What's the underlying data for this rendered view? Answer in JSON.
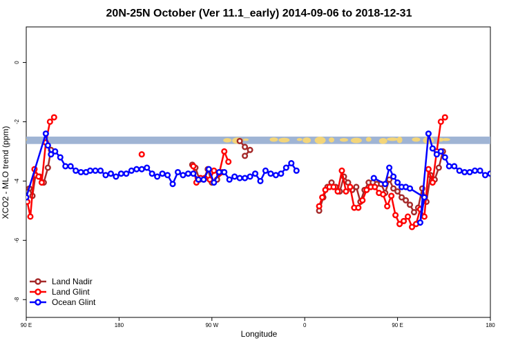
{
  "chart_data": {
    "type": "line",
    "title": "20N-25N October (Ver 11.1_early)   2014-09-06 to 2018-12-31",
    "xlabel": "Longitude",
    "ylabel": "XCO2 - MLO trend (ppm)",
    "xticks": [
      {
        "lon": 90,
        "label": "90 E"
      },
      {
        "lon": 180,
        "label": "180"
      },
      {
        "lon": 270,
        "label": "90 W"
      },
      {
        "lon": 360,
        "label": "0"
      },
      {
        "lon": 450,
        "label": "90 E"
      },
      {
        "lon": 540,
        "label": "180"
      }
    ],
    "xlim": [
      90,
      540
    ],
    "yticks": [
      0,
      -2,
      -4,
      -6,
      -8
    ],
    "ylim": [
      -8.6,
      1.2
    ],
    "grid": false,
    "legend_position": "bottom-left",
    "map_strip": {
      "y_range": [
        -2.75,
        -2.5
      ],
      "ocean_color": "#9fb4d4",
      "land_color": "#f3d57a"
    },
    "series": [
      {
        "name": "Land Nadir",
        "color": "#a52a2a",
        "segments": [
          [
            [
              93,
              -4.25
            ],
            [
              96,
              -4.5
            ],
            [
              99,
              -3.8
            ],
            [
              103,
              -3.85
            ],
            [
              107,
              -4.05
            ],
            [
              111,
              -3.55
            ],
            [
              114,
              -2.95
            ]
          ],
          [
            [
              251,
              -3.45
            ],
            [
              254,
              -3.55
            ],
            [
              258,
              -3.95
            ],
            [
              262,
              -3.95
            ],
            [
              266,
              -3.6
            ],
            [
              270,
              -4.05
            ],
            [
              275,
              -3.95
            ],
            [
              280,
              -3.7
            ]
          ],
          [
            [
              297,
              -2.65
            ],
            [
              302,
              -2.85
            ],
            [
              307,
              -2.95
            ],
            [
              302,
              -3.15
            ]
          ],
          [
            [
              374,
              -5.0
            ],
            [
              378,
              -4.55
            ],
            [
              382,
              -4.2
            ],
            [
              386,
              -4.05
            ],
            [
              390,
              -4.2
            ],
            [
              394,
              -4.35
            ],
            [
              398,
              -3.85
            ],
            [
              402,
              -4.05
            ],
            [
              406,
              -4.3
            ],
            [
              410,
              -4.2
            ],
            [
              414,
              -4.7
            ],
            [
              418,
              -4.3
            ],
            [
              422,
              -4.05
            ],
            [
              426,
              -4.05
            ],
            [
              430,
              -4.1
            ],
            [
              434,
              -4.1
            ],
            [
              438,
              -4.4
            ],
            [
              442,
              -3.95
            ],
            [
              446,
              -4.25
            ],
            [
              450,
              -4.35
            ],
            [
              454,
              -4.55
            ],
            [
              458,
              -4.65
            ],
            [
              462,
              -4.8
            ],
            [
              466,
              -5.05
            ],
            [
              470,
              -4.9
            ],
            [
              474,
              -4.25
            ],
            [
              478,
              -4.7
            ],
            [
              482,
              -3.8
            ],
            [
              486,
              -3.95
            ],
            [
              490,
              -3.55
            ],
            [
              494,
              -3.0
            ]
          ]
        ]
      },
      {
        "name": "Land Glint",
        "color": "#ff0000",
        "segments": [
          [
            [
              91,
              -4.7
            ],
            [
              94,
              -5.2
            ],
            [
              98,
              -3.6
            ],
            [
              102,
              -3.85
            ],
            [
              105,
              -4.05
            ],
            [
              109,
              -2.7
            ],
            [
              113,
              -2.0
            ],
            [
              117,
              -1.85
            ]
          ],
          [
            [
              202,
              -3.1
            ]
          ],
          [
            [
              252,
              -3.5
            ],
            [
              255,
              -4.05
            ],
            [
              259,
              -3.9
            ],
            [
              263,
              -3.9
            ],
            [
              268,
              -3.95
            ],
            [
              272,
              -3.65
            ],
            [
              277,
              -3.75
            ],
            [
              282,
              -3.0
            ],
            [
              286,
              -3.35
            ]
          ],
          [
            [
              374,
              -4.85
            ],
            [
              377,
              -4.55
            ],
            [
              380,
              -4.3
            ],
            [
              384,
              -4.2
            ],
            [
              388,
              -4.2
            ],
            [
              392,
              -4.35
            ],
            [
              396,
              -3.65
            ],
            [
              400,
              -4.35
            ],
            [
              404,
              -4.2
            ],
            [
              408,
              -4.9
            ],
            [
              412,
              -4.9
            ],
            [
              416,
              -4.65
            ],
            [
              420,
              -4.3
            ],
            [
              424,
              -4.2
            ],
            [
              428,
              -4.2
            ],
            [
              432,
              -4.4
            ],
            [
              436,
              -4.45
            ],
            [
              440,
              -4.85
            ],
            [
              444,
              -4.5
            ],
            [
              448,
              -5.15
            ],
            [
              452,
              -5.45
            ],
            [
              456,
              -5.35
            ],
            [
              460,
              -5.2
            ],
            [
              464,
              -5.55
            ],
            [
              468,
              -5.45
            ],
            [
              472,
              -4.95
            ],
            [
              476,
              -5.2
            ],
            [
              480,
              -3.6
            ],
            [
              484,
              -4.05
            ],
            [
              488,
              -3.0
            ],
            [
              492,
              -2.0
            ],
            [
              496,
              -1.85
            ]
          ]
        ]
      },
      {
        "name": "Ocean Glint",
        "color": "#0000ff",
        "segments": [
          [
            [
              90,
              -4.55
            ],
            [
              109,
              -2.4
            ],
            [
              111,
              -2.8
            ],
            [
              114,
              -3.1
            ],
            [
              118,
              -3.0
            ],
            [
              123,
              -3.2
            ],
            [
              128,
              -3.5
            ],
            [
              133,
              -3.5
            ],
            [
              138,
              -3.65
            ],
            [
              143,
              -3.7
            ],
            [
              148,
              -3.7
            ],
            [
              152,
              -3.65
            ],
            [
              157,
              -3.65
            ],
            [
              162,
              -3.65
            ],
            [
              167,
              -3.8
            ],
            [
              172,
              -3.75
            ],
            [
              177,
              -3.85
            ],
            [
              182,
              -3.75
            ],
            [
              187,
              -3.75
            ],
            [
              192,
              -3.65
            ],
            [
              197,
              -3.6
            ],
            [
              202,
              -3.6
            ],
            [
              207,
              -3.55
            ],
            [
              212,
              -3.75
            ],
            [
              217,
              -3.85
            ],
            [
              222,
              -3.75
            ],
            [
              227,
              -3.8
            ],
            [
              232,
              -4.1
            ],
            [
              237,
              -3.7
            ],
            [
              242,
              -3.8
            ],
            [
              247,
              -3.75
            ],
            [
              252,
              -3.75
            ],
            [
              257,
              -3.95
            ],
            [
              262,
              -3.95
            ],
            [
              267,
              -3.6
            ],
            [
              272,
              -4.05
            ],
            [
              277,
              -3.7
            ],
            [
              282,
              -3.7
            ],
            [
              287,
              -3.95
            ],
            [
              292,
              -3.85
            ],
            [
              297,
              -3.9
            ],
            [
              302,
              -3.9
            ],
            [
              307,
              -3.85
            ],
            [
              312,
              -3.75
            ],
            [
              317,
              -4.0
            ],
            [
              322,
              -3.65
            ],
            [
              327,
              -3.75
            ],
            [
              332,
              -3.8
            ],
            [
              337,
              -3.75
            ],
            [
              342,
              -3.55
            ],
            [
              347,
              -3.4
            ],
            [
              352,
              -3.65
            ]
          ],
          [
            [
              427,
              -3.9
            ],
            [
              438,
              -4.1
            ],
            [
              442,
              -3.55
            ],
            [
              446,
              -3.85
            ],
            [
              450,
              -4.05
            ],
            [
              454,
              -4.2
            ],
            [
              458,
              -4.2
            ],
            [
              462,
              -4.25
            ],
            [
              476,
              -4.55
            ],
            [
              472,
              -5.4
            ],
            [
              480,
              -2.4
            ],
            [
              484,
              -2.9
            ],
            [
              488,
              -3.1
            ],
            [
              492,
              -3.0
            ],
            [
              496,
              -3.2
            ],
            [
              500,
              -3.5
            ],
            [
              505,
              -3.5
            ],
            [
              510,
              -3.65
            ],
            [
              515,
              -3.7
            ],
            [
              520,
              -3.7
            ],
            [
              525,
              -3.65
            ],
            [
              530,
              -3.65
            ],
            [
              535,
              -3.8
            ],
            [
              540,
              -3.75
            ]
          ]
        ]
      }
    ]
  }
}
